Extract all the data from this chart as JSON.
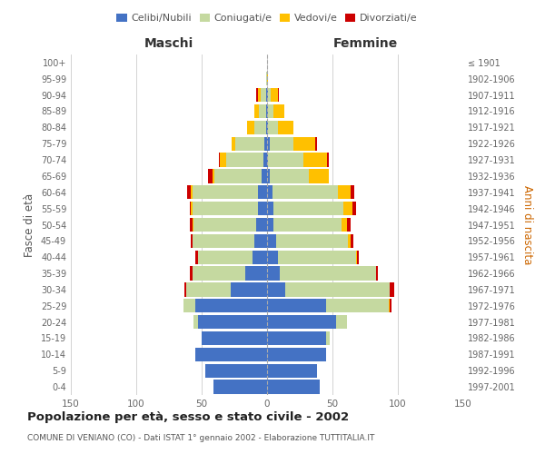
{
  "age_groups": [
    "0-4",
    "5-9",
    "10-14",
    "15-19",
    "20-24",
    "25-29",
    "30-34",
    "35-39",
    "40-44",
    "45-49",
    "50-54",
    "55-59",
    "60-64",
    "65-69",
    "70-74",
    "75-79",
    "80-84",
    "85-89",
    "90-94",
    "95-99",
    "100+"
  ],
  "birth_years": [
    "1997-2001",
    "1992-1996",
    "1987-1991",
    "1982-1986",
    "1977-1981",
    "1972-1976",
    "1967-1971",
    "1962-1966",
    "1957-1961",
    "1952-1956",
    "1947-1951",
    "1942-1946",
    "1937-1941",
    "1932-1936",
    "1927-1931",
    "1922-1926",
    "1917-1921",
    "1912-1916",
    "1907-1911",
    "1902-1906",
    "≤ 1901"
  ],
  "males": {
    "celibi": [
      41,
      47,
      55,
      50,
      53,
      55,
      28,
      17,
      11,
      10,
      8,
      7,
      7,
      4,
      3,
      2,
      1,
      1,
      1,
      0,
      0
    ],
    "coniugati": [
      0,
      0,
      0,
      0,
      3,
      9,
      34,
      40,
      42,
      47,
      48,
      50,
      50,
      36,
      28,
      22,
      9,
      5,
      4,
      1,
      0
    ],
    "vedovi": [
      0,
      0,
      0,
      0,
      0,
      0,
      0,
      0,
      0,
      0,
      1,
      1,
      1,
      2,
      5,
      3,
      5,
      4,
      2,
      0,
      0
    ],
    "divorziati": [
      0,
      0,
      0,
      0,
      0,
      0,
      1,
      2,
      2,
      1,
      2,
      1,
      3,
      3,
      1,
      0,
      0,
      0,
      1,
      0,
      0
    ]
  },
  "females": {
    "nubili": [
      40,
      38,
      45,
      45,
      53,
      45,
      14,
      10,
      8,
      7,
      5,
      5,
      4,
      2,
      1,
      2,
      1,
      1,
      1,
      0,
      0
    ],
    "coniugate": [
      0,
      0,
      0,
      3,
      8,
      48,
      80,
      73,
      60,
      55,
      52,
      53,
      50,
      30,
      27,
      18,
      7,
      4,
      2,
      0,
      0
    ],
    "vedove": [
      0,
      0,
      0,
      0,
      0,
      1,
      0,
      0,
      1,
      2,
      4,
      7,
      10,
      15,
      18,
      17,
      12,
      8,
      5,
      1,
      0
    ],
    "divorziate": [
      0,
      0,
      0,
      0,
      0,
      1,
      3,
      2,
      1,
      2,
      3,
      3,
      3,
      0,
      1,
      1,
      0,
      0,
      1,
      0,
      0
    ]
  },
  "colors": {
    "celibi": "#4472c4",
    "coniugati": "#c5d9a0",
    "vedovi": "#ffc000",
    "divorziati": "#cc0000"
  },
  "legend_labels": [
    "Celibi/Nubili",
    "Coniugati/e",
    "Vedovi/e",
    "Divorziati/e"
  ],
  "xlabel_left": "Maschi",
  "xlabel_right": "Femmine",
  "ylabel_left": "Fasce di età",
  "ylabel_right": "Anni di nascita",
  "title": "Popolazione per età, sesso e stato civile - 2002",
  "subtitle": "COMUNE DI VENIANO (CO) - Dati ISTAT 1° gennaio 2002 - Elaborazione TUTTITALIA.IT",
  "xlim": 150,
  "background_color": "#ffffff",
  "grid_color": "#cccccc"
}
